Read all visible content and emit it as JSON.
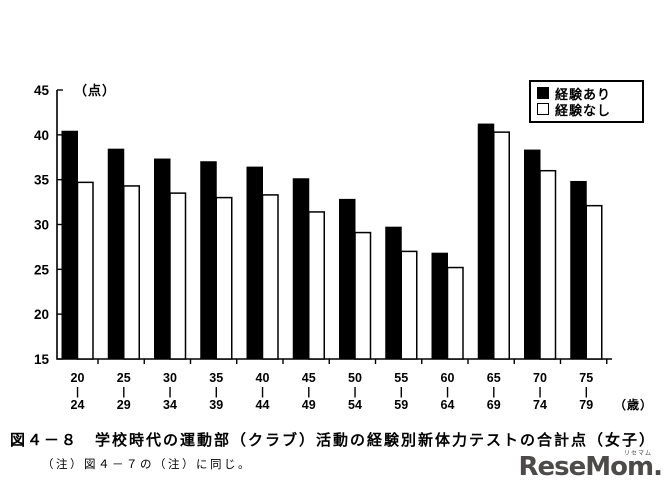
{
  "figure": {
    "title": "図４－８　学校時代の運動部（クラブ）活動の経験別新体力テストの合計点（女子）",
    "note": "（注）図４－７の（注）に同じ。",
    "watermark": "ReseMom.",
    "watermark_ruby": "リセマム"
  },
  "legend": {
    "items": [
      {
        "label": "経験あり",
        "swatch": "filled"
      },
      {
        "label": "経験なし",
        "swatch": "open"
      }
    ]
  },
  "chart_data": {
    "type": "bar",
    "title": "図４－８　学校時代の運動部（クラブ）活動の経験別新体力テストの合計点（女子）",
    "unit_label": "（点）",
    "age_unit_label": "（歳）",
    "categories": [
      {
        "from": "20",
        "to": "24"
      },
      {
        "from": "25",
        "to": "29"
      },
      {
        "from": "30",
        "to": "34"
      },
      {
        "from": "35",
        "to": "39"
      },
      {
        "from": "40",
        "to": "44"
      },
      {
        "from": "45",
        "to": "49"
      },
      {
        "from": "50",
        "to": "54"
      },
      {
        "from": "55",
        "to": "59"
      },
      {
        "from": "60",
        "to": "64"
      },
      {
        "from": "65",
        "to": "69"
      },
      {
        "from": "70",
        "to": "74"
      },
      {
        "from": "75",
        "to": "79"
      }
    ],
    "series": [
      {
        "name": "経験あり",
        "fill": "#000000",
        "values": [
          40.4,
          38.4,
          37.3,
          37.0,
          36.4,
          35.1,
          32.8,
          29.7,
          26.8,
          41.2,
          38.3,
          34.8
        ]
      },
      {
        "name": "経験なし",
        "fill": "#ffffff",
        "values": [
          34.7,
          34.3,
          33.5,
          33.0,
          33.3,
          31.4,
          29.1,
          27.0,
          25.2,
          40.3,
          36.0,
          32.1
        ]
      }
    ],
    "ylim": [
      15,
      45
    ],
    "yticks": [
      15,
      20,
      25,
      30,
      35,
      40,
      45
    ],
    "grid": false,
    "legend_position": "top-right",
    "axis_color": "#000000"
  }
}
